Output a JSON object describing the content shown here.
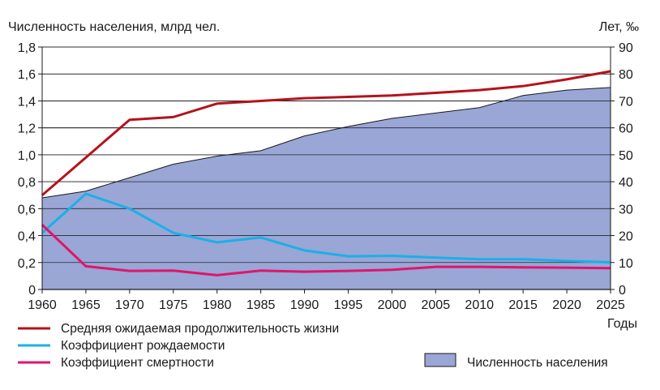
{
  "chart_data": {
    "type": "area",
    "ylabel_left": "Численность населения, млрд чел.",
    "ylabel_right": "Лет, ‰",
    "xlabel": "Годы",
    "x": [
      1960,
      1965,
      1970,
      1975,
      1980,
      1985,
      1990,
      1995,
      2000,
      2005,
      2010,
      2015,
      2020,
      2025
    ],
    "y_left_ticks": [
      "0",
      "0,2",
      "0,4",
      "0,6",
      "0,8",
      "1,0",
      "1,2",
      "1,4",
      "1,6",
      "1,8"
    ],
    "y_right_ticks": [
      "0",
      "10",
      "20",
      "30",
      "40",
      "50",
      "60",
      "70",
      "80",
      "90"
    ],
    "ylim_left": [
      0,
      1.8
    ],
    "ylim_right": [
      0,
      90
    ],
    "grid": true,
    "colors": {
      "area_fill": "#99a6d6",
      "area_line": "#1a1a1a",
      "life_expectancy": "#b5121b",
      "birth_rate": "#1ab0e8",
      "death_rate": "#e0156b",
      "grid": "#1a1a1a"
    },
    "series": [
      {
        "id": "population",
        "name": "Численность населения",
        "axis": "left",
        "kind": "area",
        "values": [
          0.68,
          0.73,
          0.83,
          0.93,
          0.99,
          1.03,
          1.14,
          1.21,
          1.27,
          1.31,
          1.35,
          1.44,
          1.48,
          1.5
        ]
      },
      {
        "id": "life_expectancy",
        "name": "Средняя ожидаемая продолжительность жизни",
        "axis": "right",
        "kind": "line",
        "values": [
          35,
          49,
          63,
          64,
          69,
          70,
          71,
          71.5,
          72,
          73,
          74,
          75.5,
          78,
          81
        ]
      },
      {
        "id": "birth_rate",
        "name": "Коэффициент рождаемости",
        "axis": "right",
        "kind": "line",
        "values": [
          21,
          35.5,
          30,
          21,
          17.5,
          19.3,
          14.5,
          12.3,
          12.5,
          11.8,
          11.2,
          11.2,
          10.6,
          10.1
        ]
      },
      {
        "id": "death_rate",
        "name": "Коэффициент смертности",
        "axis": "right",
        "kind": "line",
        "values": [
          24,
          8.6,
          6.9,
          7,
          5.3,
          7,
          6.6,
          6.9,
          7.3,
          8.4,
          8.4,
          8.2,
          8.1,
          7.9
        ]
      }
    ]
  }
}
